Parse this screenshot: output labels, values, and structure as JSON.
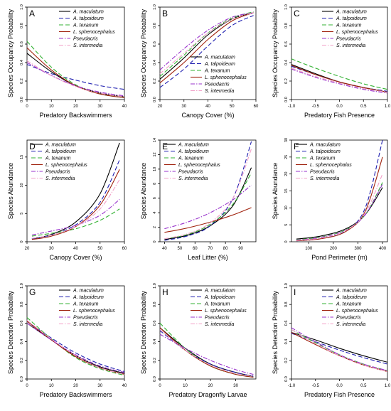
{
  "legend_species": [
    {
      "name": "A. maculatum",
      "color": "#000000",
      "dash": "solid"
    },
    {
      "name": "A. talpoideum",
      "color": "#1f1fb0",
      "dash": "dash"
    },
    {
      "name": "A. texanum",
      "color": "#33b233",
      "dash": "dash"
    },
    {
      "name": "L. sphenocephalus",
      "color": "#a0220e",
      "dash": "solid"
    },
    {
      "name": "Pseudacris",
      "color": "#9933cc",
      "dash": "dashdot"
    },
    {
      "name": "S. intermedia",
      "color": "#f2a0c8",
      "dash": "dashdot"
    }
  ],
  "chart_data": [
    {
      "panel": "A",
      "type": "line",
      "ylabel": "Species Occupancy Probability",
      "xlabel": "Predatory Backswimmers",
      "xlim": [
        0,
        40
      ],
      "ylim": [
        0,
        1
      ],
      "xticks": [
        0,
        10,
        20,
        30,
        40
      ],
      "yticks": [
        0,
        0.2,
        0.4,
        0.6,
        0.8,
        1.0
      ],
      "ytick_labels": [
        "0.0",
        "0.2",
        "0.4",
        "0.6",
        "0.8",
        "1.0"
      ],
      "legend": "top-right",
      "x": [
        0,
        10,
        20,
        30,
        40
      ],
      "series": [
        {
          "name": "A. maculatum",
          "values": [
            0.5,
            0.3,
            0.15,
            0.07,
            0.03
          ]
        },
        {
          "name": "A. talpoideum",
          "values": [
            0.38,
            0.28,
            0.21,
            0.15,
            0.11
          ]
        },
        {
          "name": "A. texanum",
          "values": [
            0.63,
            0.35,
            0.16,
            0.06,
            0.02
          ]
        },
        {
          "name": "L. sphenocephalus",
          "values": [
            0.56,
            0.32,
            0.15,
            0.06,
            0.02
          ]
        },
        {
          "name": "Pseudacris",
          "values": [
            0.4,
            0.26,
            0.15,
            0.08,
            0.04
          ]
        },
        {
          "name": "S. intermedia",
          "values": [
            0.42,
            0.26,
            0.14,
            0.07,
            0.03
          ]
        }
      ]
    },
    {
      "panel": "B",
      "type": "line",
      "ylabel": "Species Occupancy Probability",
      "xlabel": "Canopy Cover (%)",
      "xlim": [
        20,
        60
      ],
      "ylim": [
        0,
        1
      ],
      "xticks": [
        20,
        30,
        40,
        50,
        60
      ],
      "yticks": [
        0,
        0.2,
        0.4,
        0.6,
        0.8,
        1.0
      ],
      "ytick_labels": [
        "0.0",
        "0.2",
        "0.4",
        "0.6",
        "0.8",
        "1.0"
      ],
      "legend": "bottom-right",
      "x": [
        20,
        30,
        40,
        50,
        59
      ],
      "series": [
        {
          "name": "A. maculatum",
          "values": [
            0.22,
            0.45,
            0.7,
            0.87,
            0.94
          ]
        },
        {
          "name": "A. talpoideum",
          "values": [
            0.13,
            0.33,
            0.58,
            0.8,
            0.91
          ]
        },
        {
          "name": "A. texanum",
          "values": [
            0.25,
            0.48,
            0.72,
            0.88,
            0.95
          ]
        },
        {
          "name": "L. sphenocephalus",
          "values": [
            0.18,
            0.4,
            0.65,
            0.85,
            0.94
          ]
        },
        {
          "name": "Pseudacris",
          "values": [
            0.32,
            0.55,
            0.75,
            0.89,
            0.94
          ]
        },
        {
          "name": "S. intermedia",
          "values": [
            0.28,
            0.5,
            0.72,
            0.87,
            0.94
          ]
        }
      ]
    },
    {
      "panel": "C",
      "type": "line",
      "ylabel": "Species Occupancy Probability",
      "xlabel": "Predatory Fish Presence",
      "xlim": [
        -1,
        1
      ],
      "ylim": [
        0,
        1
      ],
      "xticks": [
        -1,
        -0.5,
        0,
        0.5,
        1
      ],
      "yticks": [
        0,
        0.2,
        0.4,
        0.6,
        0.8,
        1.0
      ],
      "xtick_labels": [
        "-1.0",
        "-0.5",
        "0.0",
        "0.5",
        "1.0"
      ],
      "ytick_labels": [
        "0.0",
        "0.2",
        "0.4",
        "0.6",
        "0.8",
        "1.0"
      ],
      "legend": "top-right",
      "x": [
        -1,
        -0.5,
        0,
        0.5,
        1
      ],
      "series": [
        {
          "name": "A. maculatum",
          "values": [
            0.38,
            0.28,
            0.19,
            0.13,
            0.08
          ]
        },
        {
          "name": "A. talpoideum",
          "values": [
            0.36,
            0.27,
            0.19,
            0.13,
            0.09
          ]
        },
        {
          "name": "A. texanum",
          "values": [
            0.44,
            0.34,
            0.25,
            0.17,
            0.11
          ]
        },
        {
          "name": "L. sphenocephalus",
          "values": [
            0.37,
            0.27,
            0.19,
            0.13,
            0.08
          ]
        },
        {
          "name": "Pseudacris",
          "values": [
            0.33,
            0.24,
            0.17,
            0.11,
            0.07
          ]
        },
        {
          "name": "S. intermedia",
          "values": [
            0.34,
            0.25,
            0.18,
            0.12,
            0.08
          ]
        }
      ]
    },
    {
      "panel": "D",
      "type": "line",
      "ylabel": "Species Abundance",
      "xlabel": "Canopy Cover (%)",
      "xlim": [
        20,
        60
      ],
      "ylim": [
        0,
        18
      ],
      "xticks": [
        20,
        30,
        40,
        50,
        60
      ],
      "yticks": [
        0,
        5,
        10,
        15
      ],
      "legend": "top-left",
      "x": [
        22,
        30,
        40,
        50,
        58
      ],
      "series": [
        {
          "name": "A. maculatum",
          "values": [
            0.5,
            1.3,
            3.5,
            8.5,
            17.5
          ]
        },
        {
          "name": "A. talpoideum",
          "values": [
            0.5,
            1.2,
            3.0,
            7.0,
            14.5
          ]
        },
        {
          "name": "A. texanum",
          "values": [
            1.0,
            1.5,
            2.3,
            3.8,
            5.8
          ]
        },
        {
          "name": "L. sphenocephalus",
          "values": [
            0.4,
            1.0,
            2.7,
            6.5,
            12.8
          ]
        },
        {
          "name": "Pseudacris",
          "values": [
            1.2,
            1.9,
            2.9,
            4.7,
            7.5
          ]
        },
        {
          "name": "S. intermedia",
          "values": [
            0.6,
            1.2,
            2.7,
            5.8,
            11.0
          ]
        }
      ]
    },
    {
      "panel": "E",
      "type": "line",
      "ylabel": "Species Abundance",
      "xlabel": "Leaf Litter (%)",
      "xlim": [
        37,
        100
      ],
      "ylim": [
        0,
        14
      ],
      "xticks": [
        40,
        50,
        60,
        70,
        80,
        90
      ],
      "yticks": [
        0,
        2,
        4,
        6,
        8,
        10,
        12,
        14
      ],
      "legend": "top-left",
      "x": [
        40,
        55,
        70,
        85,
        97
      ],
      "series": [
        {
          "name": "A. maculatum",
          "values": [
            0.3,
            0.9,
            2.2,
            5.0,
            10.2
          ]
        },
        {
          "name": "A. talpoideum",
          "values": [
            0.2,
            0.8,
            2.2,
            6.0,
            13.8
          ]
        },
        {
          "name": "A. texanum",
          "values": [
            0.4,
            1.0,
            2.4,
            5.2,
            9.5
          ]
        },
        {
          "name": "L. sphenocephalus",
          "values": [
            1.3,
            1.9,
            2.7,
            3.7,
            4.7
          ]
        },
        {
          "name": "Pseudacris",
          "values": [
            1.8,
            2.7,
            4.0,
            5.8,
            7.8
          ]
        },
        {
          "name": "S. intermedia",
          "values": [
            0.4,
            1.1,
            2.6,
            6.0,
            12.8
          ]
        }
      ]
    },
    {
      "panel": "F",
      "type": "line",
      "ylabel": "Species Abundance",
      "xlabel": "Pond Perimeter (m)",
      "xlim": [
        30,
        420
      ],
      "ylim": [
        0,
        30
      ],
      "xticks": [
        100,
        200,
        300,
        400
      ],
      "yticks": [
        0,
        5,
        10,
        15,
        20,
        25,
        30
      ],
      "legend": "top-left",
      "x": [
        50,
        150,
        250,
        330,
        400
      ],
      "series": [
        {
          "name": "A. maculatum",
          "values": [
            0.8,
            1.7,
            3.8,
            8.0,
            16.0
          ]
        },
        {
          "name": "A. talpoideum",
          "values": [
            0.3,
            0.9,
            3.2,
            10.0,
            30.0
          ]
        },
        {
          "name": "A. texanum",
          "values": [
            0.6,
            1.4,
            3.5,
            8.0,
            17.5
          ]
        },
        {
          "name": "L. sphenocephalus",
          "values": [
            0.3,
            0.9,
            3.0,
            9.0,
            25.0
          ]
        },
        {
          "name": "Pseudacris",
          "values": [
            0.5,
            1.3,
            3.4,
            8.0,
            17.0
          ]
        },
        {
          "name": "S. intermedia",
          "values": [
            0.4,
            1.1,
            3.3,
            8.5,
            20.0
          ]
        }
      ]
    },
    {
      "panel": "G",
      "type": "line",
      "ylabel": "Species Detection Probability",
      "xlabel": "Predatory Backswimmers",
      "xlim": [
        0,
        40
      ],
      "ylim": [
        0,
        1
      ],
      "xticks": [
        0,
        10,
        20,
        30,
        40
      ],
      "yticks": [
        0,
        0.2,
        0.4,
        0.6,
        0.8,
        1.0
      ],
      "ytick_labels": [
        "0.0",
        "0.2",
        "0.4",
        "0.6",
        "0.8",
        "1.0"
      ],
      "legend": "top-right",
      "x": [
        0,
        10,
        20,
        30,
        40
      ],
      "series": [
        {
          "name": "A. maculatum",
          "values": [
            0.6,
            0.42,
            0.25,
            0.13,
            0.06
          ]
        },
        {
          "name": "A. talpoideum",
          "values": [
            0.62,
            0.44,
            0.28,
            0.16,
            0.08
          ]
        },
        {
          "name": "A. texanum",
          "values": [
            0.66,
            0.43,
            0.23,
            0.11,
            0.04
          ]
        },
        {
          "name": "L. sphenocephalus",
          "values": [
            0.62,
            0.42,
            0.24,
            0.12,
            0.05
          ]
        },
        {
          "name": "Pseudacris",
          "values": [
            0.6,
            0.42,
            0.26,
            0.14,
            0.07
          ]
        },
        {
          "name": "S. intermedia",
          "values": [
            0.63,
            0.43,
            0.25,
            0.12,
            0.05
          ]
        }
      ]
    },
    {
      "panel": "H",
      "type": "line",
      "ylabel": "Species Detection Probability",
      "xlabel": "Predatory Dragonfly Larvae",
      "xlim": [
        0,
        38
      ],
      "ylim": [
        0,
        1
      ],
      "xticks": [
        0,
        10,
        20,
        30
      ],
      "yticks": [
        0,
        0.2,
        0.4,
        0.6,
        0.8,
        1.0
      ],
      "ytick_labels": [
        "0.0",
        "0.2",
        "0.4",
        "0.6",
        "0.8",
        "1.0"
      ],
      "legend": "top-right",
      "x": [
        0,
        10,
        20,
        30,
        37
      ],
      "series": [
        {
          "name": "A. maculatum",
          "values": [
            0.55,
            0.33,
            0.16,
            0.07,
            0.03
          ]
        },
        {
          "name": "A. talpoideum",
          "values": [
            0.52,
            0.31,
            0.16,
            0.07,
            0.03
          ]
        },
        {
          "name": "A. texanum",
          "values": [
            0.6,
            0.33,
            0.14,
            0.05,
            0.02
          ]
        },
        {
          "name": "L. sphenocephalus",
          "values": [
            0.55,
            0.31,
            0.14,
            0.05,
            0.02
          ]
        },
        {
          "name": "Pseudacris",
          "values": [
            0.48,
            0.33,
            0.2,
            0.1,
            0.05
          ]
        },
        {
          "name": "S. intermedia",
          "values": [
            0.53,
            0.31,
            0.15,
            0.06,
            0.03
          ]
        }
      ]
    },
    {
      "panel": "I",
      "type": "line",
      "ylabel": "Species Detection Probability",
      "xlabel": "Predatory Fish Presence",
      "xlim": [
        -1,
        1
      ],
      "ylim": [
        0,
        1
      ],
      "xticks": [
        -1,
        -0.5,
        0,
        0.5,
        1
      ],
      "yticks": [
        0,
        0.2,
        0.4,
        0.6,
        0.8,
        1.0
      ],
      "xtick_labels": [
        "-1.0",
        "-0.5",
        "0.0",
        "0.5",
        "1.0"
      ],
      "ytick_labels": [
        "0.0",
        "0.2",
        "0.4",
        "0.6",
        "0.8",
        "1.0"
      ],
      "legend": "top-right",
      "x": [
        -1,
        -0.5,
        0,
        0.5,
        1
      ],
      "series": [
        {
          "name": "A. maculatum",
          "values": [
            0.5,
            0.42,
            0.33,
            0.25,
            0.18
          ]
        },
        {
          "name": "A. talpoideum",
          "values": [
            0.49,
            0.4,
            0.31,
            0.23,
            0.16
          ]
        },
        {
          "name": "A. texanum",
          "values": [
            0.53,
            0.39,
            0.26,
            0.16,
            0.09
          ]
        },
        {
          "name": "L. sphenocephalus",
          "values": [
            0.5,
            0.37,
            0.25,
            0.15,
            0.08
          ]
        },
        {
          "name": "Pseudacris",
          "values": [
            0.55,
            0.4,
            0.26,
            0.16,
            0.09
          ]
        },
        {
          "name": "S. intermedia",
          "values": [
            0.53,
            0.38,
            0.25,
            0.15,
            0.08
          ]
        }
      ]
    }
  ]
}
